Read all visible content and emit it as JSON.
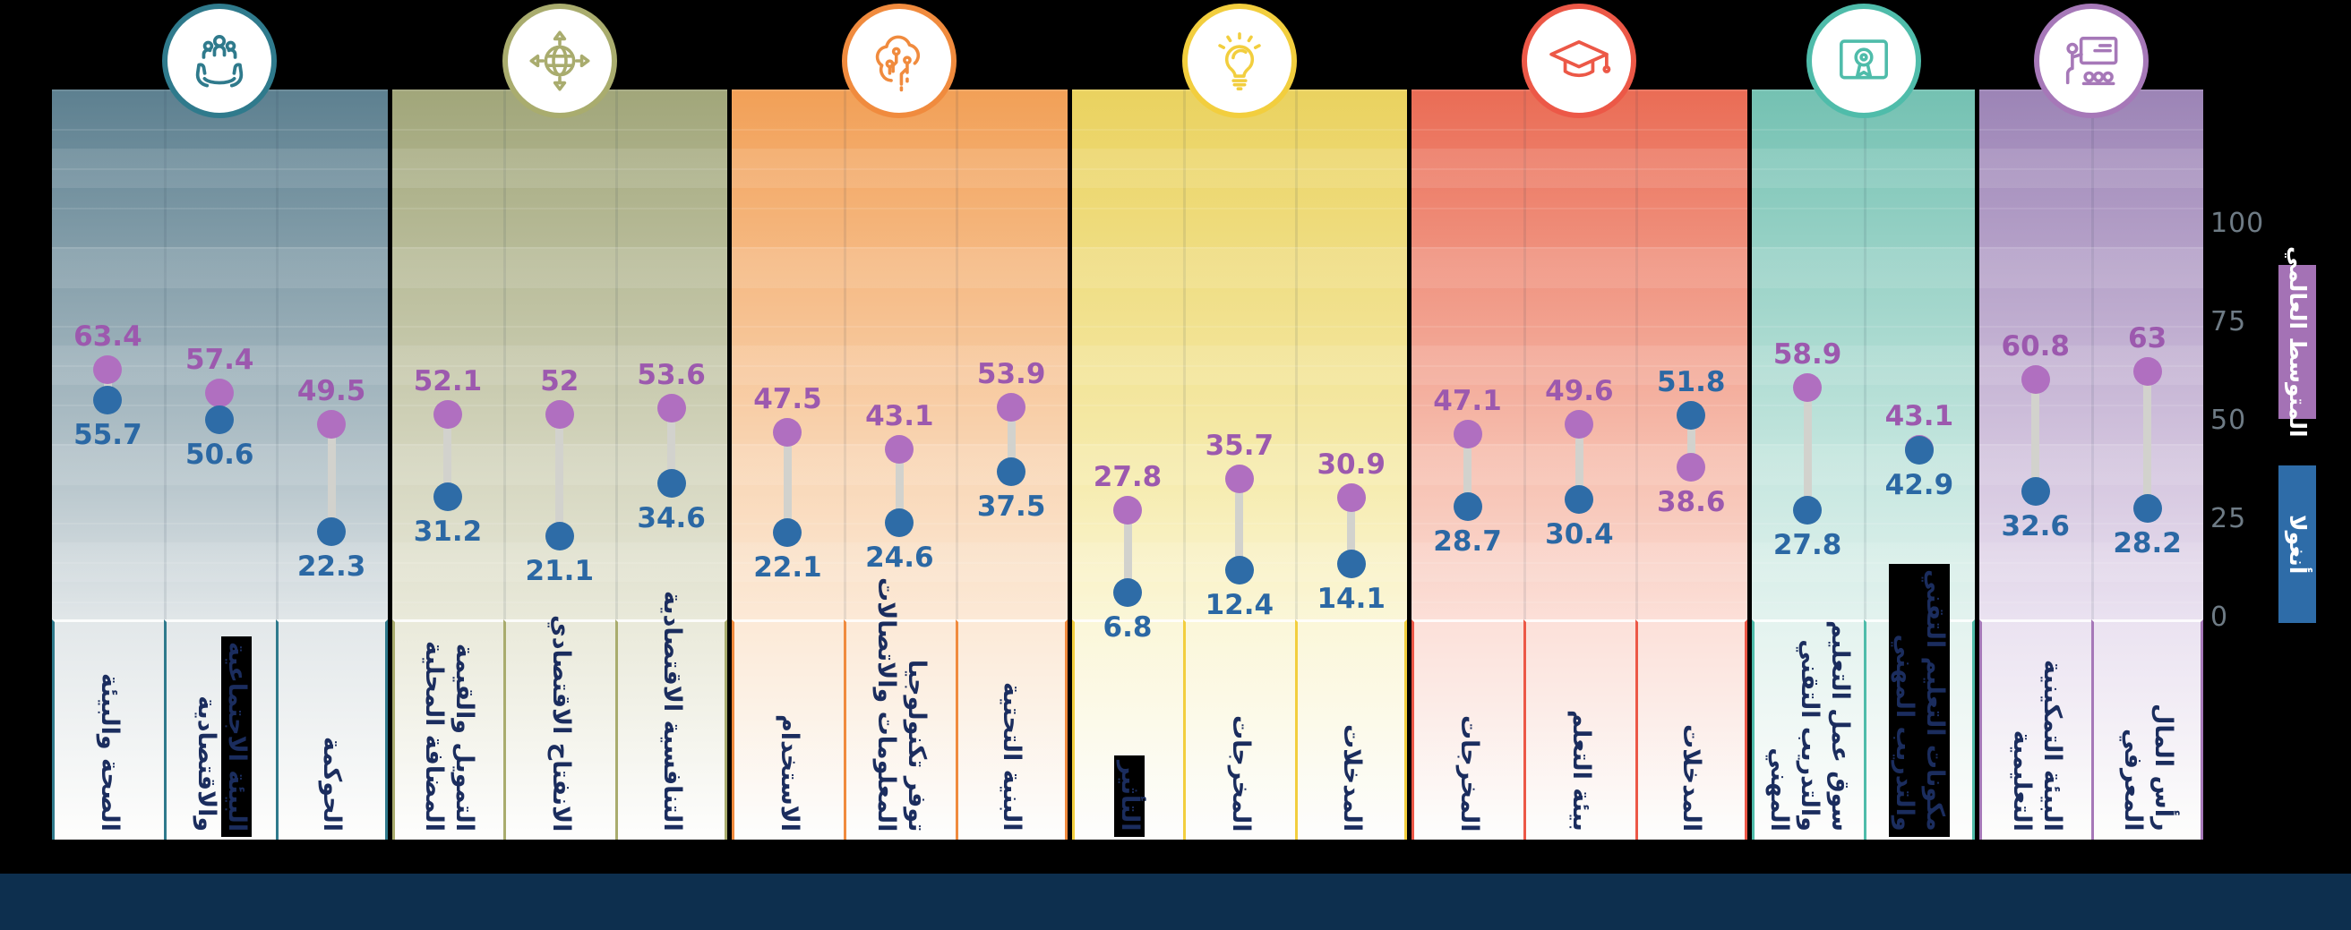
{
  "legend": {
    "world": {
      "label": "المتوسط العالمي",
      "color": "#a472b5"
    },
    "country": {
      "label": "أنغولا",
      "color": "#2e6ca8"
    }
  },
  "axis": {
    "ticks": [
      100,
      75,
      50,
      25,
      0
    ]
  },
  "chart_data": {
    "type": "dumbbell",
    "orientation": "vertical",
    "ylim": [
      0,
      100
    ],
    "series_names": {
      "world": "المتوسط العالمي",
      "country": "أنغولا"
    },
    "series_colors": {
      "world": "#b06fc0",
      "country": "#2e6ca7"
    },
    "groups": [
      {
        "icon": "people-in-hands-icon",
        "color": "#2f7a8c",
        "top": "#5d8090",
        "mid": "#b9c7cd",
        "pale": "#e3e8ea",
        "columns": [
          {
            "label_lines": [
              "الصحة والبيئة"
            ],
            "world": 63.4,
            "country": 55.7
          },
          {
            "label_lines": [
              "البيئة الاجتماعية",
              "والاقتصادية"
            ],
            "hl": [
              0
            ],
            "world": 57.4,
            "country": 50.6
          },
          {
            "label_lines": [
              "الحوكمة"
            ],
            "world": 49.5,
            "country": 22.3
          }
        ]
      },
      {
        "icon": "globe-arrows-icon",
        "color": "#a9ac6e",
        "top": "#a1a67a",
        "mid": "#d7d8c2",
        "pale": "#eaeadb",
        "columns": [
          {
            "label_lines": [
              "التمويل والقيمة",
              "المضافة المحلية"
            ],
            "world": 52.1,
            "country": 31.2
          },
          {
            "label_lines": [
              "الانفتاح الاقتصادي"
            ],
            "world": 52,
            "country": 21.1
          },
          {
            "label_lines": [
              "التنافسية الاقتصادية"
            ],
            "world": 53.6,
            "country": 34.6
          }
        ]
      },
      {
        "icon": "ai-brain-circuit-icon",
        "color": "#f08b3e",
        "top": "#f2a057",
        "mid": "#f9d9ba",
        "pale": "#fcead8",
        "columns": [
          {
            "label_lines": [
              "الاستخدام"
            ],
            "world": 47.5,
            "country": 22.1
          },
          {
            "label_lines": [
              "توفر تكنولوجيا",
              "المعلومات والاتصالات"
            ],
            "world": 43.1,
            "country": 24.6
          },
          {
            "label_lines": [
              "البنية التحتية"
            ],
            "world": 53.9,
            "country": 37.5
          }
        ]
      },
      {
        "icon": "lightbulb-icon",
        "color": "#f2ce3e",
        "top": "#ead25f",
        "mid": "#f6ecb0",
        "pale": "#fbf7da",
        "columns": [
          {
            "label_lines": [
              "التأثير"
            ],
            "hl": [
              0
            ],
            "world": 27.8,
            "country": 6.8
          },
          {
            "label_lines": [
              "المخرجات"
            ],
            "world": 35.7,
            "country": 12.4
          },
          {
            "label_lines": [
              "المدخلات"
            ],
            "world": 30.9,
            "country": 14.1
          }
        ]
      },
      {
        "icon": "graduation-cap-icon",
        "color": "#ec5847",
        "top": "#ea6c55",
        "mid": "#f7c4b5",
        "pale": "#fce1da",
        "columns": [
          {
            "label_lines": [
              "المخرجات"
            ],
            "world": 47.1,
            "country": 28.7
          },
          {
            "label_lines": [
              "بيئة التعلم"
            ],
            "world": 49.6,
            "country": 30.4
          },
          {
            "label_lines": [
              "المدخلات"
            ],
            "world": 38.6,
            "country": 51.8
          }
        ]
      },
      {
        "icon": "certificate-award-icon",
        "color": "#4fbcaa",
        "top": "#74c1b2",
        "mid": "#c9e8e1",
        "pale": "#e4f3ef",
        "columns": [
          {
            "label_lines": [
              "سوق عمل التعليم",
              "والتدريب التقني",
              "المهني"
            ],
            "world": 58.9,
            "country": 27.8
          },
          {
            "label_lines": [
              "مكونات التعليم التقني",
              "والتدريب المهني"
            ],
            "hl": [
              0,
              1
            ],
            "world": 43.1,
            "country": 42.9
          }
        ]
      },
      {
        "icon": "presentation-training-icon",
        "color": "#a678b8",
        "top": "#9c84b6",
        "mid": "#d7c9e1",
        "pale": "#ebe3f1",
        "columns": [
          {
            "label_lines": [
              "البيئة التمكينية",
              "التعليمية"
            ],
            "world": 60.8,
            "country": 32.6
          },
          {
            "label_lines": [
              "رأس المال",
              "المعرفي"
            ],
            "world": 63,
            "country": 28.2
          }
        ]
      }
    ]
  }
}
